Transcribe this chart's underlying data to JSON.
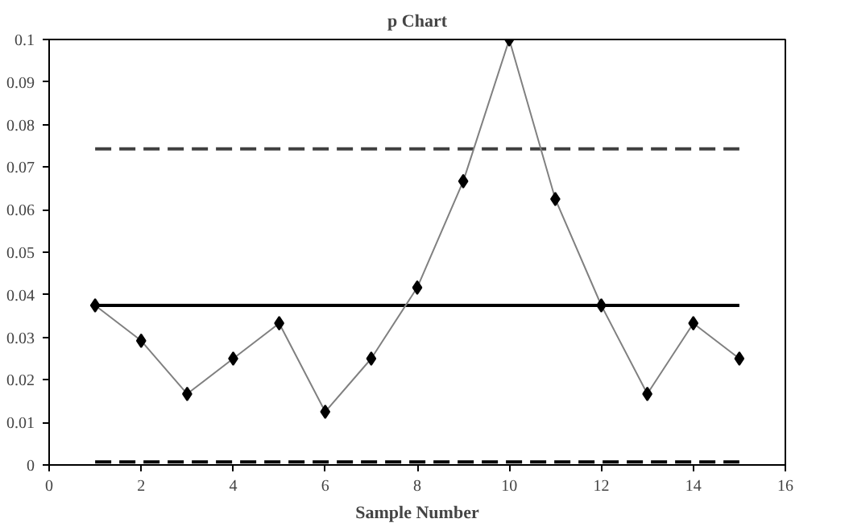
{
  "chart_data": {
    "type": "line",
    "title": "p Chart",
    "xlabel": "Sample Number",
    "x": [
      1,
      2,
      3,
      4,
      5,
      6,
      7,
      8,
      9,
      10,
      11,
      12,
      13,
      14,
      15
    ],
    "series": [
      {
        "color": "#808080",
        "values": [
          0.0375,
          0.0292,
          0.0167,
          0.025,
          0.0333,
          0.0125,
          0.025,
          0.0417,
          0.0667,
          0.1,
          0.0625,
          0.0375,
          0.0167,
          0.0333,
          0.025
        ]
      }
    ],
    "marker": "diamond",
    "xlim": [
      0,
      16
    ],
    "ylim": [
      0,
      0.1
    ],
    "xticks": [
      0,
      2,
      4,
      6,
      8,
      10,
      12,
      14,
      16
    ],
    "yticks": [
      0,
      0.01,
      0.02,
      0.03,
      0.04,
      0.05,
      0.06,
      0.07,
      0.08,
      0.09,
      0.1
    ],
    "ref_lines": [
      {
        "axis": "y",
        "value": 0.0375,
        "color": "#000000",
        "line_style": "solid"
      },
      {
        "axis": "y",
        "value": 0.0743,
        "color": "#404040",
        "line_style": "dashed"
      },
      {
        "axis": "y",
        "value": 0.0007,
        "color": "#000000",
        "line_style": "dashed"
      }
    ],
    "grid": false
  }
}
